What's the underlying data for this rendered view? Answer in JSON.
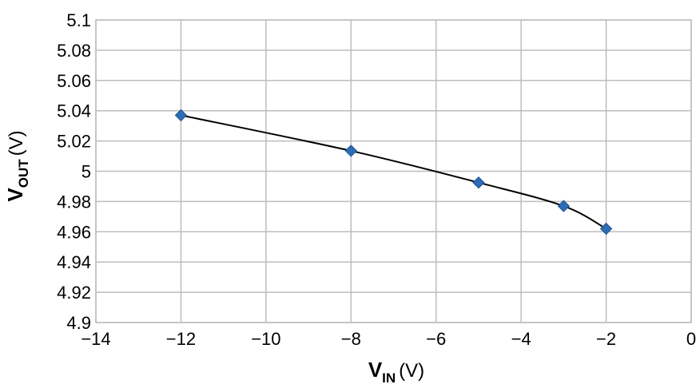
{
  "chart_data": {
    "type": "line",
    "xlabel": {
      "main": "V",
      "sub": "IN",
      "unit": "(V)"
    },
    "ylabel": {
      "main": "V",
      "sub": "OUT",
      "unit": "(V)"
    },
    "xlim": [
      -14,
      0
    ],
    "ylim": [
      4.9,
      5.1
    ],
    "x_ticks": [
      -14,
      -12,
      -10,
      -8,
      -6,
      -4,
      -2,
      0
    ],
    "x_tick_labels": [
      "−14",
      "−12",
      "−10",
      "−8",
      "−6",
      "−4",
      "−2",
      "0"
    ],
    "y_ticks": [
      4.9,
      4.92,
      4.94,
      4.96,
      4.98,
      5.0,
      5.02,
      5.04,
      5.06,
      5.08,
      5.1
    ],
    "y_tick_labels": [
      "4.9",
      "4.92",
      "4.94",
      "4.96",
      "4.98",
      "5",
      "5.02",
      "5.04",
      "5.06",
      "5.08",
      "5.1"
    ],
    "grid": true,
    "legend": "none",
    "series": [
      {
        "x": [
          -12,
          -8,
          -5,
          -3,
          -2
        ],
        "y": [
          5.037,
          5.0135,
          4.9925,
          4.977,
          4.962
        ],
        "line_color": "#000000",
        "marker": "diamond",
        "marker_color": "#2e6db4"
      }
    ]
  }
}
